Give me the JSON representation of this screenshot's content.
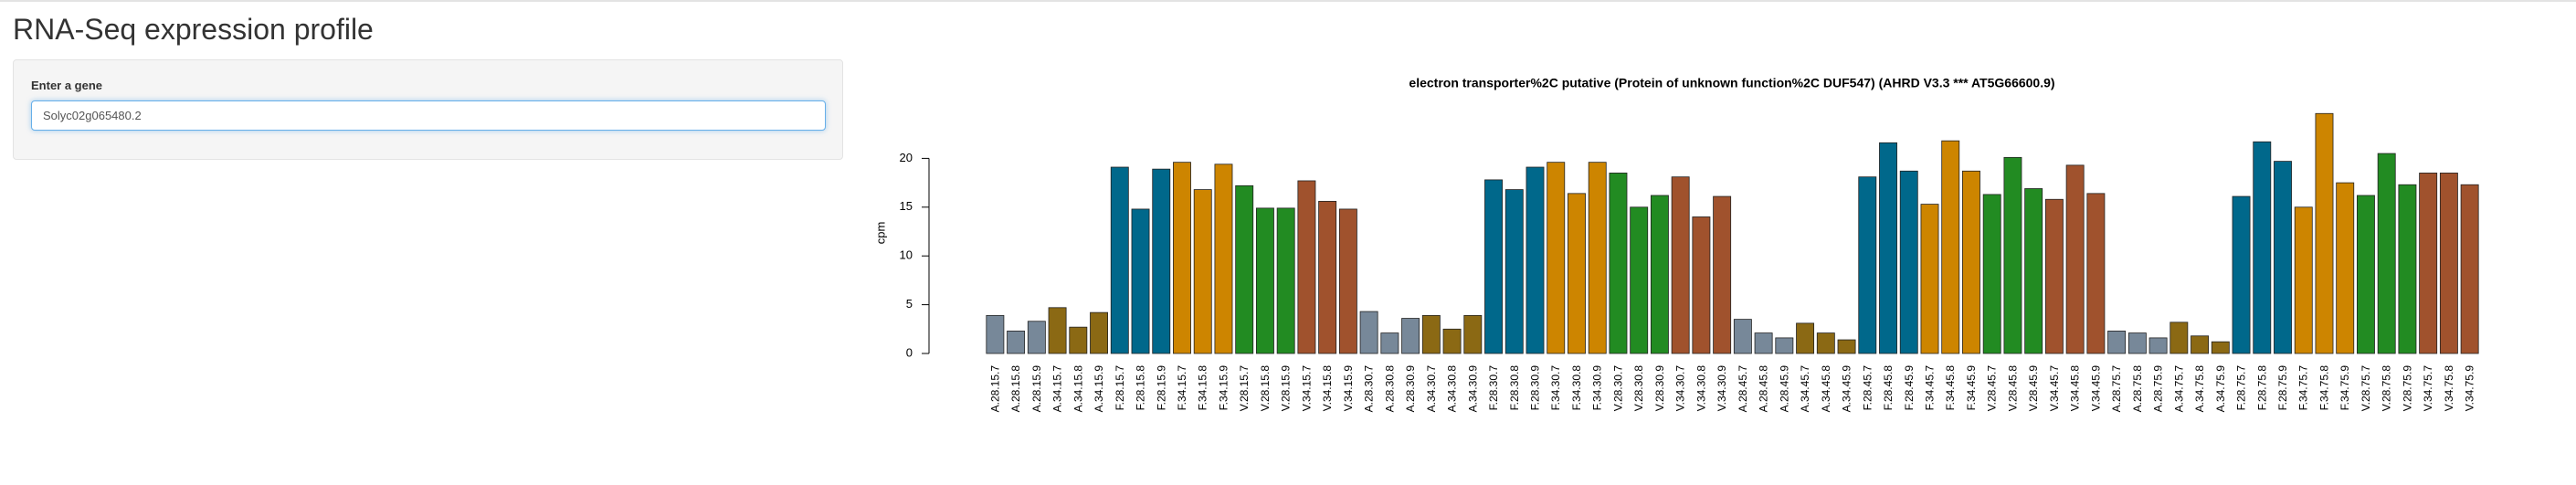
{
  "page": {
    "title": "RNA-Seq expression profile",
    "input_label": "Enter a gene",
    "input_value": "Solyc02g065480.2"
  },
  "chart_data": {
    "type": "bar",
    "title": "electron transporter%2C putative (Protein of unknown function%2C DUF547) (AHRD V3.3 *** AT5G66600.9)",
    "y_label": "cpm",
    "categories": [
      "A.28.15.7",
      "A.28.15.8",
      "A.28.15.9",
      "A.34.15.7",
      "A.34.15.8",
      "A.34.15.9",
      "F.28.15.7",
      "F.28.15.8",
      "F.28.15.9",
      "F.34.15.7",
      "F.34.15.8",
      "F.34.15.9",
      "V.28.15.7",
      "V.28.15.8",
      "V.28.15.9",
      "V.34.15.7",
      "V.34.15.8",
      "V.34.15.9",
      "A.28.30.7",
      "A.28.30.8",
      "A.28.30.9",
      "A.34.30.7",
      "A.34.30.8",
      "A.34.30.9",
      "F.28.30.7",
      "F.28.30.8",
      "F.28.30.9",
      "F.34.30.7",
      "F.34.30.8",
      "F.34.30.9",
      "V.28.30.7",
      "V.28.30.8",
      "V.28.30.9",
      "V.34.30.7",
      "V.34.30.8",
      "V.34.30.9",
      "A.28.45.7",
      "A.28.45.8",
      "A.28.45.9",
      "A.34.45.7",
      "A.34.45.8",
      "A.34.45.9",
      "F.28.45.7",
      "F.28.45.8",
      "F.28.45.9",
      "F.34.45.7",
      "F.34.45.8",
      "F.34.45.9",
      "V.28.45.7",
      "V.28.45.8",
      "V.28.45.9",
      "V.34.45.7",
      "V.34.45.8",
      "V.34.45.9",
      "A.28.75.7",
      "A.28.75.8",
      "A.28.75.9",
      "A.34.75.7",
      "A.34.75.8",
      "A.34.75.9",
      "F.28.75.7",
      "F.28.75.8",
      "F.28.75.9",
      "F.34.75.7",
      "F.34.75.8",
      "F.34.75.9",
      "V.28.75.7",
      "V.28.75.8",
      "V.28.75.9",
      "V.34.75.7",
      "V.34.75.8",
      "V.34.75.9"
    ],
    "values": [
      3.9,
      2.3,
      3.3,
      4.7,
      2.7,
      4.2,
      19.1,
      14.8,
      18.9,
      19.6,
      16.8,
      19.4,
      17.2,
      14.9,
      14.9,
      17.7,
      15.6,
      14.8,
      4.3,
      2.1,
      3.6,
      3.9,
      2.5,
      3.9,
      17.8,
      16.8,
      19.1,
      19.6,
      16.4,
      19.6,
      18.5,
      15.0,
      16.2,
      18.1,
      14.0,
      16.1,
      3.5,
      2.1,
      1.6,
      3.1,
      2.1,
      1.4,
      18.1,
      21.6,
      18.7,
      15.3,
      21.8,
      18.7,
      16.3,
      20.1,
      16.9,
      15.8,
      19.3,
      16.4,
      2.3,
      2.1,
      1.6,
      3.2,
      1.8,
      1.2,
      16.1,
      21.7,
      19.7,
      15.0,
      24.6,
      17.5,
      16.2,
      20.5,
      17.3,
      18.5,
      18.5,
      17.3
    ],
    "colors": [
      "#778899",
      "#778899",
      "#778899",
      "#8b6914",
      "#8b6914",
      "#8b6914",
      "#00688b",
      "#00688b",
      "#00688b",
      "#cd8500",
      "#cd8500",
      "#cd8500",
      "#228b22",
      "#228b22",
      "#228b22",
      "#a0522d",
      "#a0522d",
      "#a0522d",
      "#778899",
      "#778899",
      "#778899",
      "#8b6914",
      "#8b6914",
      "#8b6914",
      "#00688b",
      "#00688b",
      "#00688b",
      "#cd8500",
      "#cd8500",
      "#cd8500",
      "#228b22",
      "#228b22",
      "#228b22",
      "#a0522d",
      "#a0522d",
      "#a0522d",
      "#778899",
      "#778899",
      "#778899",
      "#8b6914",
      "#8b6914",
      "#8b6914",
      "#00688b",
      "#00688b",
      "#00688b",
      "#cd8500",
      "#cd8500",
      "#cd8500",
      "#228b22",
      "#228b22",
      "#228b22",
      "#a0522d",
      "#a0522d",
      "#a0522d",
      "#778899",
      "#778899",
      "#778899",
      "#8b6914",
      "#8b6914",
      "#8b6914",
      "#00688b",
      "#00688b",
      "#00688b",
      "#cd8500",
      "#cd8500",
      "#cd8500",
      "#228b22",
      "#228b22",
      "#228b22",
      "#a0522d",
      "#a0522d",
      "#a0522d"
    ],
    "ylim": [
      0,
      25
    ],
    "yticks": [
      0,
      5,
      10,
      15,
      20
    ]
  }
}
